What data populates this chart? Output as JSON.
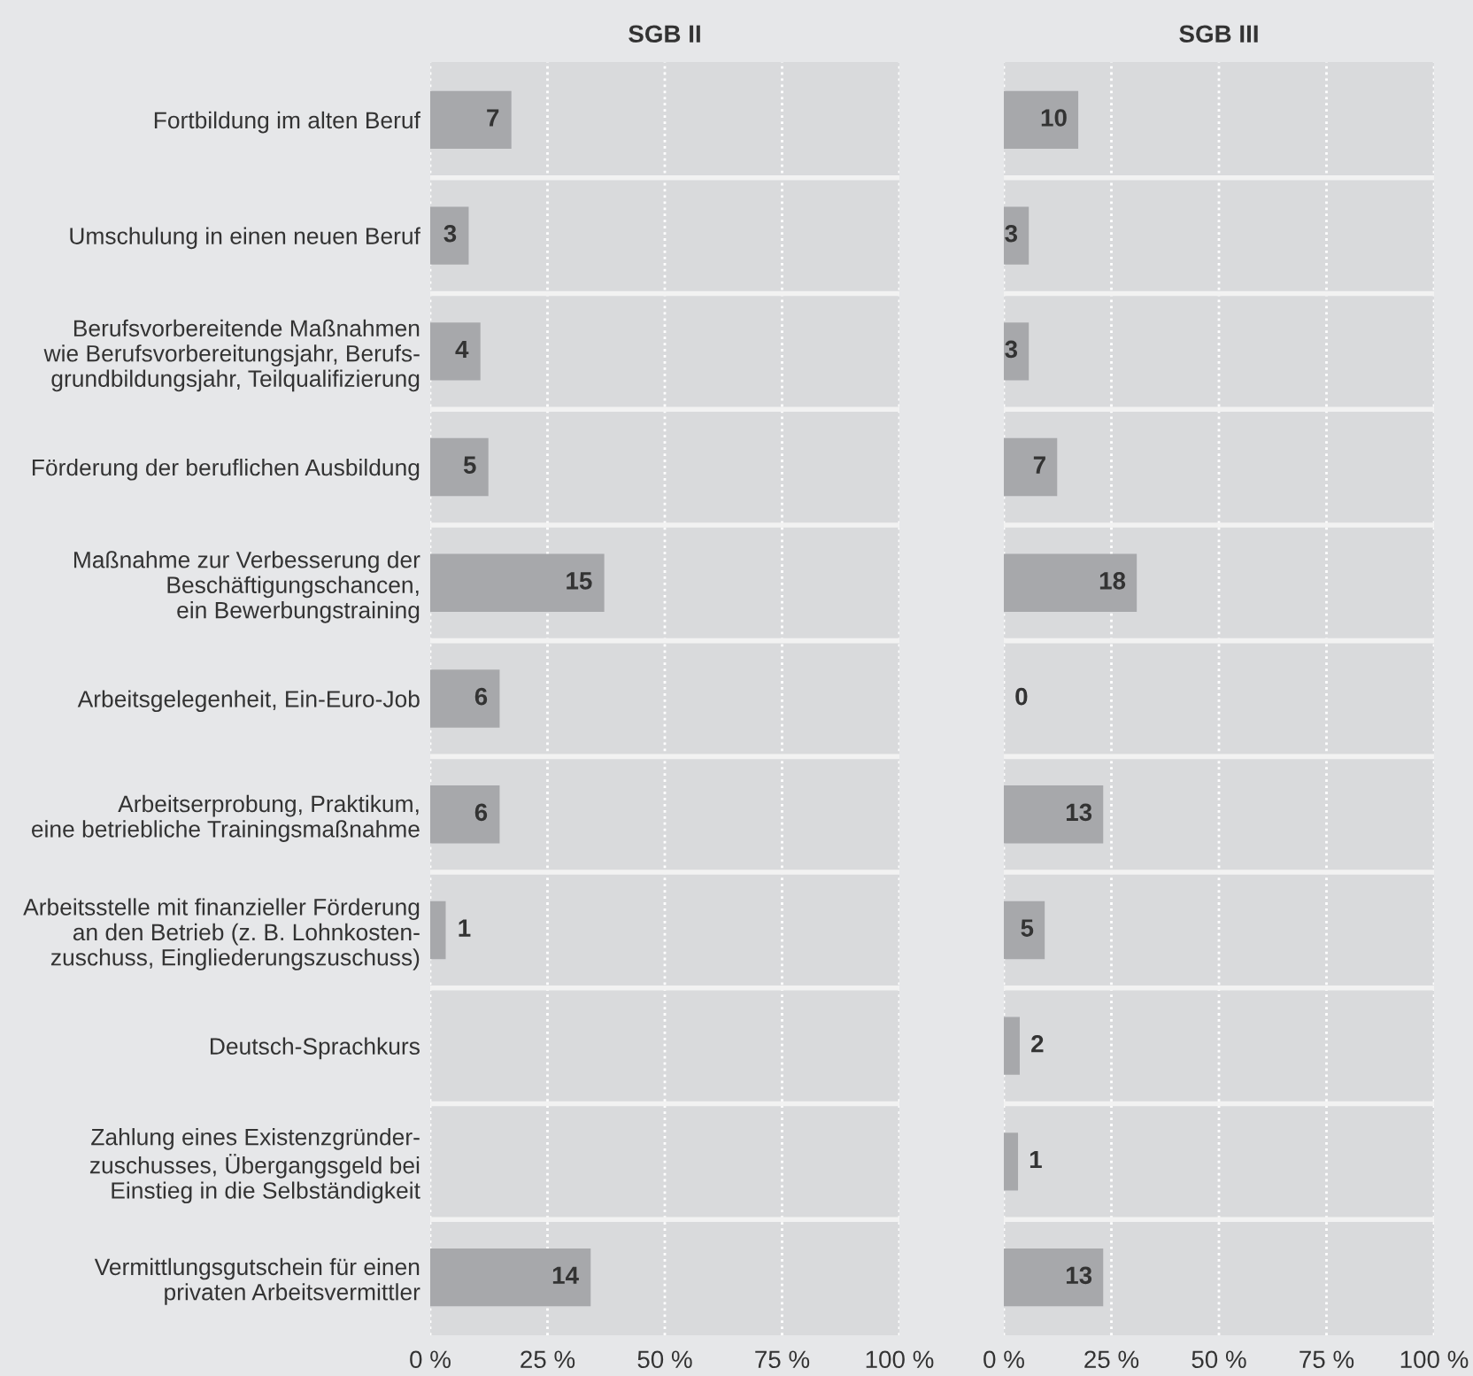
{
  "chart_data": [
    {
      "type": "bar",
      "orientation": "horizontal",
      "title": "SGB II",
      "color": "#a7a8ab",
      "grid": "x",
      "xlim": [
        0,
        100
      ],
      "xticks": [
        {
          "value": 0,
          "label": "0 %"
        },
        {
          "value": 25,
          "label": "25 %"
        },
        {
          "value": 50,
          "label": "50 %"
        },
        {
          "value": 75,
          "label": "75 %"
        },
        {
          "value": 100,
          "label": "100 %"
        }
      ],
      "categories": [
        "Fortbildung im alten Beruf",
        "Umschulung in einen neuen Beruf",
        "Berufsvorbereitende Maßnahmen\nwie Berufsvorbereitungsjahr, Berufs-\ngrundbildungsjahr, Teilqualifizierung",
        "Förderung der beruflichen Ausbildung",
        "Maßnahme zur Verbesserung der\nBeschäftigungschancen,\nein Bewerbungstraining",
        "Arbeitsgelegenheit, Ein-Euro-Job",
        "Arbeitserprobung, Praktikum,\neine betriebliche Trainingsmaßnahme",
        "Arbeitsstelle mit finanzieller Förderung\nan den Betrieb (z. B. Lohnkosten-\nzuschuss, Eingliederungszuschuss)",
        "Deutsch-Sprachkurs",
        "Zahlung eines Existenzgründer-\nzuschusses, Übergangsgeld bei\nEinstieg in die Selbständigkeit",
        "Vermittlungsgutschein für einen\nprivaten Arbeitsvermittler"
      ],
      "values": [
        17.3,
        8.2,
        10.7,
        12.4,
        37.1,
        14.8,
        14.8,
        3.3,
        null,
        null,
        34.2
      ],
      "annotations": [
        {
          "text": "7",
          "x": 17.3,
          "y": "Fortbildung im alten Beruf"
        },
        {
          "text": "3",
          "x": 8.2,
          "y": "Umschulung in einen neuen Beruf"
        },
        {
          "text": "4",
          "x": 10.7,
          "y": "Berufsvorbereitende Maßnahmen\nwie Berufsvorbereitungsjahr, Berufs-\ngrundbildungsjahr, Teilqualifizierung"
        },
        {
          "text": "5",
          "x": 12.4,
          "y": "Förderung der beruflichen Ausbildung"
        },
        {
          "text": "15",
          "x": 37.1,
          "y": "Maßnahme zur Verbesserung der\nBeschäftigungschancen,\nein Bewerbungstraining"
        },
        {
          "text": "6",
          "x": 14.8,
          "y": "Arbeitsgelegenheit, Ein-Euro-Job"
        },
        {
          "text": "6",
          "x": 14.8,
          "y": "Arbeitserprobung, Praktikum,\neine betriebliche Trainingsmaßnahme"
        },
        {
          "text": "1",
          "x": 3.3,
          "y": "Arbeitsstelle mit finanzieller Förderung\nan den Betrieb (z. B. Lohnkosten-\nzuschuss, Eingliederungszuschuss)"
        },
        {
          "text": "14",
          "x": 34.2,
          "y": "Vermittlungsgutschein für einen\nprivaten Arbeitsvermittler"
        }
      ]
    },
    {
      "type": "bar",
      "orientation": "horizontal",
      "title": "SGB III",
      "color": "#a7a8ab",
      "grid": "x",
      "xlim": [
        0,
        100
      ],
      "xticks": [
        {
          "value": 0,
          "label": "0 %"
        },
        {
          "value": 25,
          "label": "25 %"
        },
        {
          "value": 50,
          "label": "50 %"
        },
        {
          "value": 75,
          "label": "75 %"
        },
        {
          "value": 100,
          "label": "100 %"
        }
      ],
      "categories": [
        null,
        null,
        null,
        null,
        null,
        null,
        null,
        null,
        null,
        null,
        null
      ],
      "values": [
        17.3,
        5.8,
        5.8,
        12.4,
        30.9,
        0,
        23.1,
        9.5,
        3.7,
        3.3,
        23.1
      ],
      "annotations": [
        {
          "text": "10",
          "x": 17.3
        },
        {
          "text": "3",
          "x": 5.8
        },
        {
          "text": "3",
          "x": 5.8
        },
        {
          "text": "7",
          "x": 12.4
        },
        {
          "text": "18",
          "x": 30.9
        },
        {
          "text": "0",
          "x": 0
        },
        {
          "text": "13",
          "x": 23.1
        },
        {
          "text": "5",
          "x": 9.5
        },
        {
          "text": "2",
          "x": 3.7
        },
        {
          "text": "1",
          "x": 3.3
        },
        {
          "text": "13",
          "x": 23.1
        }
      ]
    }
  ]
}
